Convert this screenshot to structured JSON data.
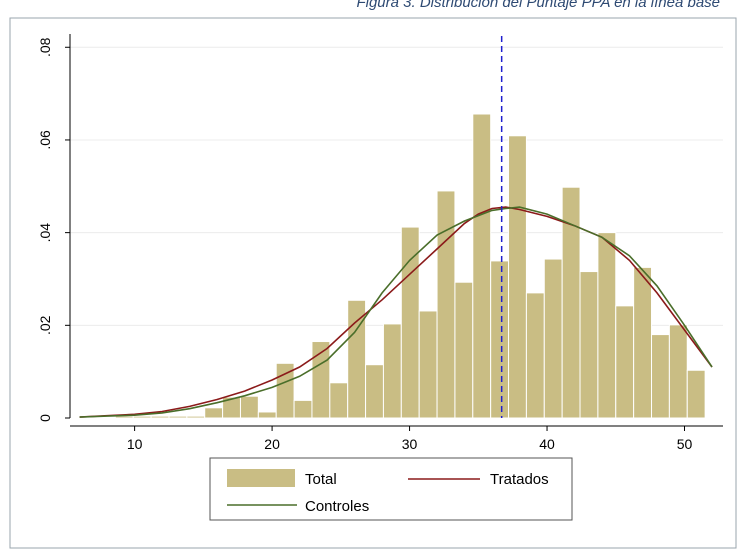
{
  "caption": "Figura 3. Distribución del Puntaje PPA en la línea base",
  "colors": {
    "hist_fill": "#c9bd84",
    "hist_stroke": "#b7aa6a",
    "tratados": "#8b1a1a",
    "controles": "#4a6e2a",
    "vline": "#1f1fcf",
    "grid": "#ececec",
    "frame": "#9aa4ad"
  },
  "chart_data": {
    "type": "histogram",
    "title": "",
    "xlabel": "",
    "ylabel": "",
    "xlim": [
      5.3,
      52.8
    ],
    "ylim": [
      0,
      0.082
    ],
    "xticks": [
      10,
      20,
      30,
      40,
      50
    ],
    "yticks": [
      0,
      0.02,
      0.04,
      0.06,
      0.08
    ],
    "ytick_labels": [
      "0",
      ".02",
      ".04",
      ".06",
      ".08"
    ],
    "xtick_labels": [
      "10",
      "20",
      "30",
      "40",
      "50"
    ],
    "grid": true,
    "legend_position": "bottom",
    "vertical_line": {
      "x": 36.7,
      "style": "dashed"
    },
    "bins": {
      "start": 6,
      "width": 1.3,
      "heights": [
        0,
        0,
        0.0004,
        0.0004,
        0.0004,
        0.0004,
        0.0004,
        0.0022,
        0.0045,
        0.0047,
        0.0013,
        0.0118,
        0.0038,
        0.0165,
        0.0076,
        0.0254,
        0.0115,
        0.0203,
        0.0412,
        0.0231,
        0.049,
        0.0293,
        0.0656,
        0.0339,
        0.0609,
        0.027,
        0.0343,
        0.0498,
        0.0316,
        0.04,
        0.0242,
        0.0325,
        0.018,
        0.0201,
        0.0103
      ]
    },
    "series": [
      {
        "name": "Tratados",
        "x": [
          6,
          8,
          10,
          12,
          14,
          16,
          18,
          20,
          22,
          24,
          26,
          28,
          30,
          32,
          34,
          35,
          36,
          37,
          38,
          40,
          42,
          44,
          46,
          48,
          50,
          52
        ],
        "y": [
          0.0002,
          0.0005,
          0.0008,
          0.0014,
          0.0025,
          0.004,
          0.0058,
          0.0082,
          0.011,
          0.015,
          0.0205,
          0.0255,
          0.031,
          0.0365,
          0.042,
          0.044,
          0.0452,
          0.0455,
          0.045,
          0.0435,
          0.0415,
          0.039,
          0.034,
          0.027,
          0.019,
          0.011
        ]
      },
      {
        "name": "Controles",
        "x": [
          6,
          8,
          10,
          12,
          14,
          16,
          18,
          20,
          22,
          24,
          26,
          28,
          30,
          32,
          34,
          36,
          37,
          38,
          40,
          42,
          44,
          46,
          48,
          50,
          52
        ],
        "y": [
          0.0002,
          0.0004,
          0.0006,
          0.0011,
          0.002,
          0.0033,
          0.0048,
          0.0066,
          0.009,
          0.0125,
          0.0185,
          0.027,
          0.034,
          0.0395,
          0.0425,
          0.0448,
          0.0452,
          0.0455,
          0.044,
          0.0415,
          0.039,
          0.035,
          0.0285,
          0.02,
          0.011
        ]
      }
    ],
    "legend": [
      {
        "label": "Total",
        "kind": "bar"
      },
      {
        "label": "Tratados",
        "kind": "line",
        "series": "Tratados"
      },
      {
        "label": "Controles",
        "kind": "line",
        "series": "Controles"
      }
    ]
  }
}
